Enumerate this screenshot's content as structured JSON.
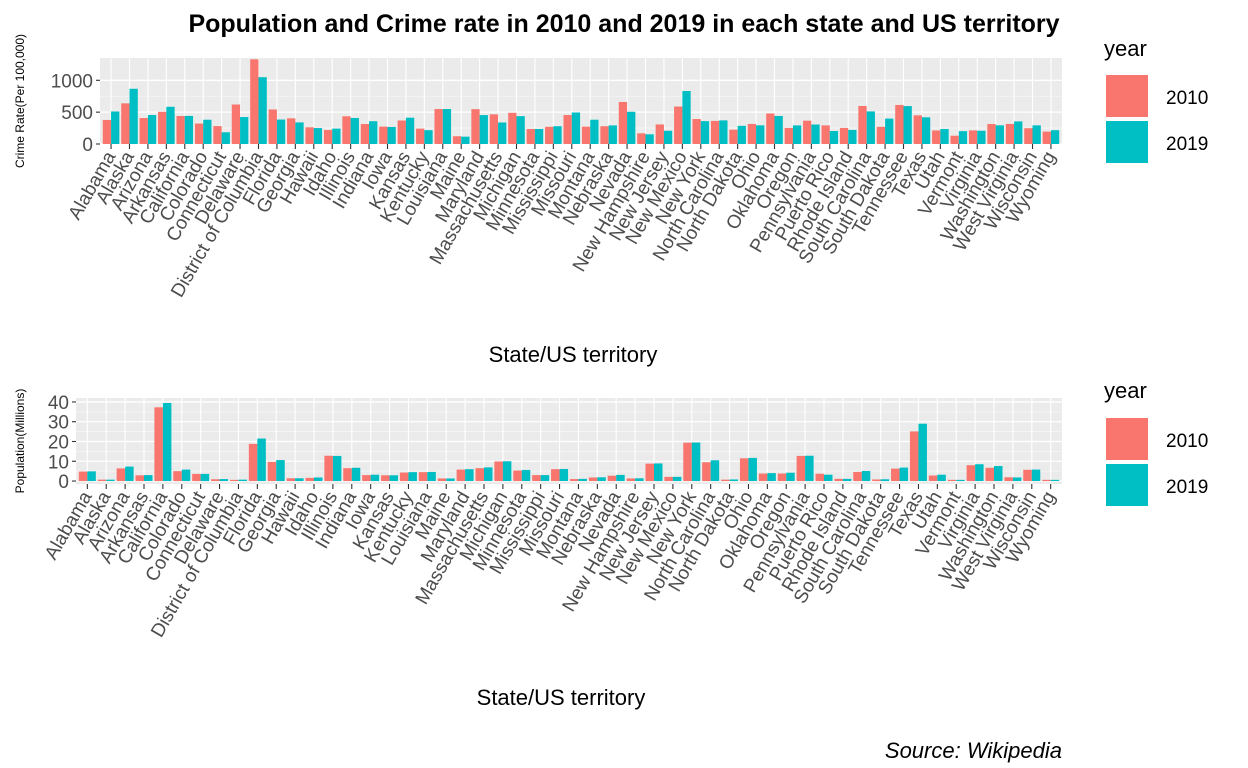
{
  "title": "Population and Crime rate in 2010 and 2019 in each state and US territory",
  "caption": "Source: Wikipedia",
  "legend": {
    "title": "year",
    "entries": [
      {
        "label": "2010",
        "color": "#F8766D"
      },
      {
        "label": "2019",
        "color": "#00BFC4"
      }
    ]
  },
  "chart_data": [
    {
      "type": "bar",
      "xlabel": "State/US territory",
      "ylabel": "Crime Rate(Per 100,000)",
      "ylim": [
        0,
        1350
      ],
      "yticks": [
        0,
        500,
        1000
      ],
      "categories": [
        "Alabama",
        "Alaska",
        "Arizona",
        "Arkansas",
        "California",
        "Colorado",
        "Connecticut",
        "Delaware",
        "District of Columbia",
        "Florida",
        "Georgia",
        "Hawaii",
        "Idaho",
        "Illinois",
        "Indiana",
        "Iowa",
        "Kansas",
        "Kentucky",
        "Louisiana",
        "Maine",
        "Maryland",
        "Massachusetts",
        "Michigan",
        "Minnesota",
        "Mississippi",
        "Missouri",
        "Montana",
        "Nebraska",
        "Nevada",
        "New Hampshire",
        "New Jersey",
        "New Mexico",
        "New York",
        "North Carolina",
        "North Dakota",
        "Ohio",
        "Oklahoma",
        "Oregon",
        "Pennsylvania",
        "Puerto Rico",
        "Rhode Island",
        "South Carolina",
        "South Dakota",
        "Tennessee",
        "Texas",
        "Utah",
        "Vermont",
        "Virginia",
        "Washington",
        "West Virginia",
        "Wisconsin",
        "Wyoming"
      ],
      "series": [
        {
          "name": "2010",
          "values": [
            377,
            638,
            408,
            505,
            440,
            321,
            281,
            620,
            1330,
            542,
            403,
            262,
            221,
            435,
            314,
            273,
            369,
            242,
            549,
            122,
            547,
            466,
            490,
            236,
            270,
            455,
            272,
            279,
            660,
            167,
            307,
            588,
            392,
            363,
            225,
            315,
            479,
            252,
            366,
            292,
            252,
            597,
            269,
            613,
            450,
            213,
            130,
            213,
            314,
            315,
            248,
            195
          ]
        },
        {
          "name": "2019",
          "values": [
            510,
            867,
            455,
            584,
            441,
            381,
            184,
            423,
            1049,
            384,
            339,
            250,
            242,
            408,
            358,
            267,
            413,
            217,
            549,
            115,
            454,
            338,
            437,
            236,
            279,
            495,
            381,
            292,
            506,
            152,
            208,
            832,
            359,
            371,
            285,
            293,
            440,
            292,
            306,
            204,
            221,
            511,
            399,
            595,
            419,
            236,
            202,
            208,
            293,
            355,
            293,
            217
          ]
        }
      ]
    },
    {
      "type": "bar",
      "xlabel": "State/US territory",
      "ylabel": "Population(Millions)",
      "ylim": [
        -1.5,
        42
      ],
      "yticks": [
        0,
        10,
        20,
        30,
        40
      ],
      "categories": [
        "Alabama",
        "Alaska",
        "Arizona",
        "Arkansas",
        "California",
        "Colorado",
        "Connecticut",
        "Delaware",
        "District of Columbia",
        "Florida",
        "Georgia",
        "Hawaii",
        "Idaho",
        "Illinois",
        "Indiana",
        "Iowa",
        "Kansas",
        "Kentucky",
        "Louisiana",
        "Maine",
        "Maryland",
        "Massachusetts",
        "Michigan",
        "Minnesota",
        "Mississippi",
        "Missouri",
        "Montana",
        "Nebraska",
        "Nevada",
        "New Hampshire",
        "New Jersey",
        "New Mexico",
        "New York",
        "North Carolina",
        "North Dakota",
        "Ohio",
        "Oklahoma",
        "Oregon",
        "Pennsylvania",
        "Puerto Rico",
        "Rhode Island",
        "South Carolina",
        "South Dakota",
        "Tennessee",
        "Texas",
        "Utah",
        "Vermont",
        "Virginia",
        "Washington",
        "West Virginia",
        "Wisconsin",
        "Wyoming"
      ],
      "series": [
        {
          "name": "2010",
          "values": [
            4.8,
            0.7,
            6.4,
            2.9,
            37.3,
            5.0,
            3.6,
            0.9,
            0.6,
            18.8,
            9.7,
            1.4,
            1.6,
            12.8,
            6.5,
            3.0,
            2.9,
            4.3,
            4.5,
            1.3,
            5.8,
            6.5,
            9.9,
            5.3,
            3.0,
            6.0,
            1.0,
            1.8,
            2.7,
            1.3,
            8.8,
            2.1,
            19.4,
            9.5,
            0.7,
            11.5,
            3.8,
            3.8,
            12.7,
            3.7,
            1.1,
            4.6,
            0.8,
            6.3,
            25.1,
            2.8,
            0.6,
            8.0,
            6.7,
            1.9,
            5.7,
            0.6
          ]
        },
        {
          "name": "2019",
          "values": [
            4.9,
            0.7,
            7.3,
            3.0,
            39.5,
            5.8,
            3.6,
            1.0,
            0.7,
            21.5,
            10.6,
            1.4,
            1.8,
            12.7,
            6.7,
            3.2,
            2.9,
            4.5,
            4.6,
            1.3,
            6.0,
            6.9,
            10.0,
            5.6,
            3.0,
            6.1,
            1.1,
            1.9,
            3.1,
            1.4,
            8.9,
            2.1,
            19.5,
            10.5,
            0.8,
            11.7,
            4.0,
            4.2,
            12.8,
            3.2,
            1.1,
            5.1,
            0.9,
            6.8,
            29.0,
            3.2,
            0.6,
            8.5,
            7.6,
            1.8,
            5.8,
            0.6
          ]
        }
      ]
    }
  ]
}
